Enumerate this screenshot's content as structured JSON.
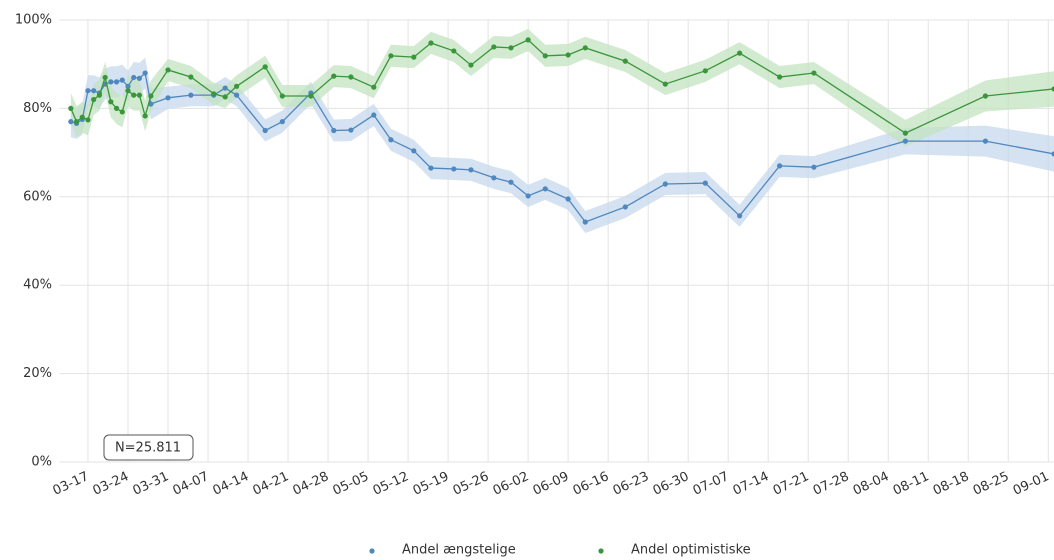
{
  "chart_data": {
    "type": "line",
    "annotation": "N=25.811",
    "x": [
      "03-14",
      "03-15",
      "03-16",
      "03-17",
      "03-18",
      "03-19",
      "03-20",
      "03-21",
      "03-22",
      "03-23",
      "03-24",
      "03-25",
      "03-26",
      "03-27",
      "03-28",
      "03-31",
      "04-04",
      "04-08",
      "04-10",
      "04-12",
      "04-17",
      "04-20",
      "04-25",
      "04-29",
      "05-02",
      "05-06",
      "05-09",
      "05-13",
      "05-16",
      "05-20",
      "05-23",
      "05-27",
      "05-30",
      "06-02",
      "06-05",
      "06-09",
      "06-12",
      "06-19",
      "06-26",
      "07-03",
      "07-09",
      "07-16",
      "07-22",
      "08-07",
      "08-21",
      "09-02"
    ],
    "series": [
      {
        "name": "Andel ængstelige",
        "color": "#4f87bf",
        "band_color": "#c5d8ec",
        "values": [
          77,
          76.6,
          77.5,
          84,
          84,
          83.5,
          85.5,
          86,
          86,
          86.4,
          85,
          87,
          86.8,
          88,
          81,
          82.4,
          83,
          83,
          84.6,
          83,
          75,
          77,
          83.5,
          75,
          75.1,
          78.5,
          72.9,
          70.4,
          66.5,
          66.3,
          66.1,
          64.3,
          63.3,
          60.2,
          61.8,
          59.5,
          54.3,
          57.7,
          62.9,
          63.1,
          55.7,
          67,
          66.7,
          72.6,
          72.6,
          69.7
        ],
        "error": [
          3.5,
          3.5,
          3.5,
          3.5,
          3.5,
          3.5,
          3.5,
          3.5,
          3.5,
          3.5,
          3.5,
          3.5,
          3.5,
          3.5,
          3.5,
          2.5,
          2.5,
          2.5,
          2.5,
          2.5,
          2.5,
          2.5,
          2.5,
          2.5,
          2.5,
          2.5,
          2.5,
          2.5,
          2.5,
          2.5,
          2.5,
          2.5,
          2.5,
          2.5,
          2.5,
          2.5,
          2.5,
          2.5,
          2.5,
          2.5,
          2.5,
          2.5,
          2.5,
          3,
          3.5,
          4
        ]
      },
      {
        "name": "Andel optimistiske",
        "color": "#3a963a",
        "band_color": "#c3e3c0",
        "values": [
          80,
          77,
          78,
          77.4,
          82,
          83,
          87,
          81.5,
          80,
          79.2,
          84,
          83,
          83,
          78.3,
          82.8,
          88.7,
          87.1,
          83.3,
          82.6,
          85,
          89.4,
          82.8,
          82.8,
          87.3,
          87.1,
          84.8,
          91.9,
          91.6,
          94.8,
          93,
          89.8,
          93.9,
          93.7,
          95.5,
          91.9,
          92.1,
          93.7,
          90.7,
          85.5,
          88.5,
          92.5,
          87.1,
          88,
          74.4,
          82.8,
          84.4
        ],
        "error": [
          3.5,
          3.5,
          3.5,
          3.5,
          3.5,
          3.5,
          3.5,
          3.5,
          3.5,
          3.5,
          3.5,
          3.5,
          3.5,
          3.5,
          3.5,
          2.5,
          2.5,
          2.5,
          2.5,
          2.5,
          2.5,
          2.5,
          2.5,
          2.5,
          2.5,
          2.5,
          2.5,
          2.5,
          2.5,
          2.5,
          2.5,
          2.5,
          2.5,
          2.5,
          2.5,
          2.5,
          2.5,
          2.5,
          2.5,
          2.5,
          2.5,
          2.5,
          2.5,
          3,
          3.5,
          4
        ]
      }
    ],
    "xlim": [
      "03-12",
      "09-02"
    ],
    "xticks": [
      "03-17",
      "03-24",
      "03-31",
      "04-07",
      "04-14",
      "04-21",
      "04-28",
      "05-05",
      "05-12",
      "05-19",
      "05-26",
      "06-02",
      "06-09",
      "06-16",
      "06-23",
      "06-30",
      "07-07",
      "07-14",
      "07-21",
      "07-28",
      "08-04",
      "08-11",
      "08-18",
      "08-25",
      "09-01"
    ],
    "ylim": [
      0,
      100
    ],
    "yticks": [
      {
        "value": 0,
        "label": "0%"
      },
      {
        "value": 20,
        "label": "20%"
      },
      {
        "value": 40,
        "label": "40%"
      },
      {
        "value": 60,
        "label": "60%"
      },
      {
        "value": 80,
        "label": "80%"
      },
      {
        "value": 100,
        "label": "100%"
      }
    ],
    "grid": true,
    "legend": "bottom"
  }
}
